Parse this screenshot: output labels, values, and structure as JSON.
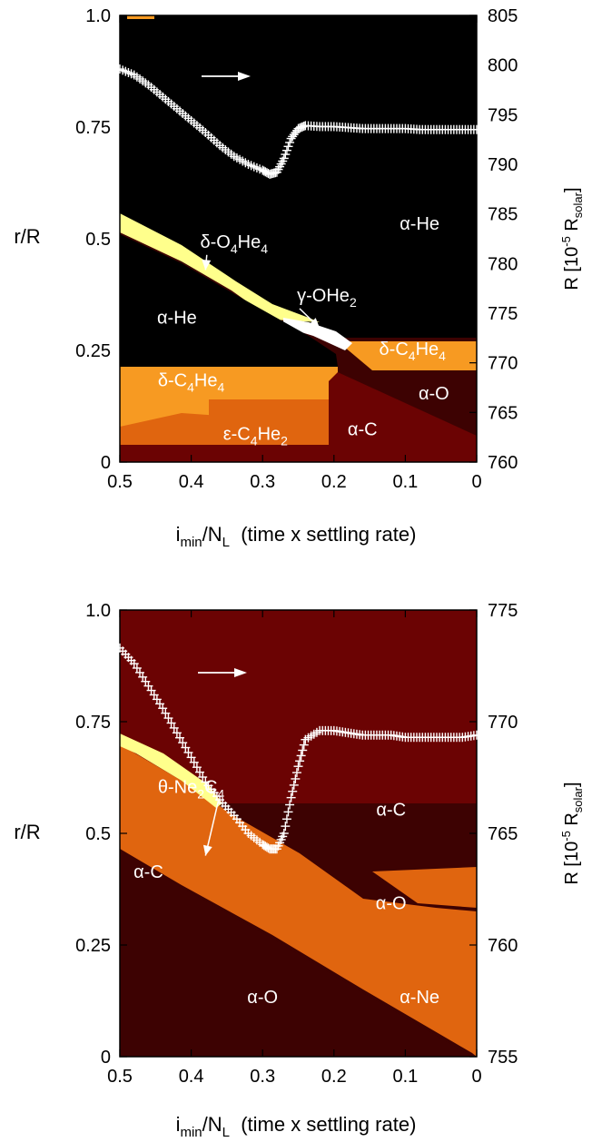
{
  "colors": {
    "alpha_He": "#000000",
    "alpha_O": "#3d0202",
    "alpha_C": "#6b0303",
    "delta_C4He4": "#f79a22",
    "eps_C4He2": "#e0650f",
    "delta_O4He4": "#ffff8c",
    "gamma_OHe2": "#ffffff",
    "alpha_Ne": "#e0650f",
    "theta_Ne2C4": "#ffff8c",
    "marker": "#ffffff"
  },
  "chart_data": [
    {
      "type": "heatmap",
      "xlabel_main": "i",
      "xlabel_sub1": "min",
      "xlabel_mid": "/N",
      "xlabel_sub2": "L",
      "xlabel_tail": "  (time x settling rate)",
      "ylabel": "r/R",
      "y2label_main": "R [10",
      "y2label_sup": "-5",
      "y2label_mid": " R",
      "y2label_sub": "solar",
      "y2label_tail": "]",
      "xlim": [
        0.5,
        0
      ],
      "ylim": [
        0,
        1.0
      ],
      "y2lim": [
        760,
        805
      ],
      "xticks": [
        "0.5",
        "0.4",
        "0.3",
        "0.2",
        "0.1",
        "0"
      ],
      "yticks": [
        "0",
        "0.25",
        "0.5",
        "0.75",
        "1.0"
      ],
      "y2ticks": [
        "760",
        "765",
        "770",
        "775",
        "780",
        "785",
        "790",
        "795",
        "800",
        "805"
      ],
      "regions": [
        {
          "label": "α-He",
          "x": 0.42,
          "y": 0.31
        },
        {
          "label": "α-He",
          "x": 0.08,
          "y": 0.52
        },
        {
          "label": "α-O",
          "x": 0.06,
          "y": 0.14
        },
        {
          "label": "α-C",
          "x": 0.16,
          "y": 0.06
        }
      ],
      "annotations": [
        {
          "main": "δ-O",
          "s1": "4",
          "mid": "He",
          "s2": "4",
          "x": 0.34,
          "y": 0.48,
          "tx": 0.38,
          "ty": 0.43
        },
        {
          "main": "γ-OHe",
          "s1": "2",
          "mid": "",
          "s2": "",
          "x": 0.21,
          "y": 0.36,
          "tx": 0.22,
          "ty": 0.3
        },
        {
          "main": "δ-C",
          "s1": "4",
          "mid": "He",
          "s2": "4",
          "x": 0.4,
          "y": 0.17
        },
        {
          "main": "ε-C",
          "s1": "4",
          "mid": "He",
          "s2": "2",
          "x": 0.31,
          "y": 0.05
        },
        {
          "main": "δ-C",
          "s1": "4",
          "mid": "He",
          "s2": "4",
          "x": 0.09,
          "y": 0.24
        }
      ],
      "radius_series": {
        "name": "R",
        "x": [
          0.5,
          0.48,
          0.46,
          0.44,
          0.42,
          0.4,
          0.38,
          0.36,
          0.34,
          0.32,
          0.3,
          0.29,
          0.28,
          0.27,
          0.26,
          0.25,
          0.24,
          0.22,
          0.2,
          0.18,
          0.16,
          0.14,
          0.12,
          0.1,
          0.08,
          0.06,
          0.04,
          0.02,
          0.0
        ],
        "values": [
          799.6,
          799.0,
          798.0,
          796.8,
          795.6,
          794.4,
          793.2,
          791.9,
          790.8,
          790.0,
          789.4,
          789.0,
          789.2,
          790.6,
          792.6,
          793.6,
          793.9,
          793.8,
          793.8,
          793.7,
          793.6,
          793.6,
          793.6,
          793.6,
          793.5,
          793.5,
          793.5,
          793.5,
          793.5
        ]
      }
    },
    {
      "type": "heatmap",
      "xlabel_main": "i",
      "xlabel_sub1": "min",
      "xlabel_mid": "/N",
      "xlabel_sub2": "L",
      "xlabel_tail": "  (time x settling rate)",
      "ylabel": "r/R",
      "y2label_main": "R [10",
      "y2label_sup": "-5",
      "y2label_mid": " R",
      "y2label_sub": "solar",
      "y2label_tail": "]",
      "xlim": [
        0.5,
        0
      ],
      "ylim": [
        0,
        1.0
      ],
      "y2lim": [
        755,
        775
      ],
      "xticks": [
        "0.5",
        "0.4",
        "0.3",
        "0.2",
        "0.1",
        "0"
      ],
      "yticks": [
        "0",
        "0.25",
        "0.5",
        "0.75",
        "1.0"
      ],
      "y2ticks": [
        "755",
        "760",
        "765",
        "770",
        "775"
      ],
      "regions": [
        {
          "label": "α-C",
          "x": 0.12,
          "y": 0.54
        },
        {
          "label": "α-C",
          "x": 0.46,
          "y": 0.4
        },
        {
          "label": "α-O",
          "x": 0.12,
          "y": 0.33
        },
        {
          "label": "α-O",
          "x": 0.3,
          "y": 0.12
        },
        {
          "label": "α-Ne",
          "x": 0.08,
          "y": 0.12
        }
      ],
      "annotations": [
        {
          "main": "θ-Ne",
          "s1": "2",
          "mid": "C",
          "s2": "4",
          "x": 0.4,
          "y": 0.59,
          "tx": 0.38,
          "ty": 0.45
        }
      ],
      "radius_series": {
        "name": "R",
        "x": [
          0.5,
          0.48,
          0.46,
          0.44,
          0.42,
          0.4,
          0.38,
          0.36,
          0.34,
          0.32,
          0.3,
          0.29,
          0.28,
          0.27,
          0.26,
          0.25,
          0.24,
          0.22,
          0.2,
          0.18,
          0.16,
          0.14,
          0.12,
          0.1,
          0.08,
          0.06,
          0.04,
          0.02,
          0.0
        ],
        "values": [
          773.3,
          772.6,
          771.6,
          770.6,
          769.5,
          768.4,
          767.3,
          766.5,
          765.8,
          765.0,
          764.5,
          764.3,
          764.3,
          765.0,
          766.6,
          768.0,
          769.2,
          769.6,
          769.6,
          769.5,
          769.4,
          769.4,
          769.4,
          769.3,
          769.3,
          769.3,
          769.3,
          769.3,
          769.4
        ]
      }
    }
  ]
}
